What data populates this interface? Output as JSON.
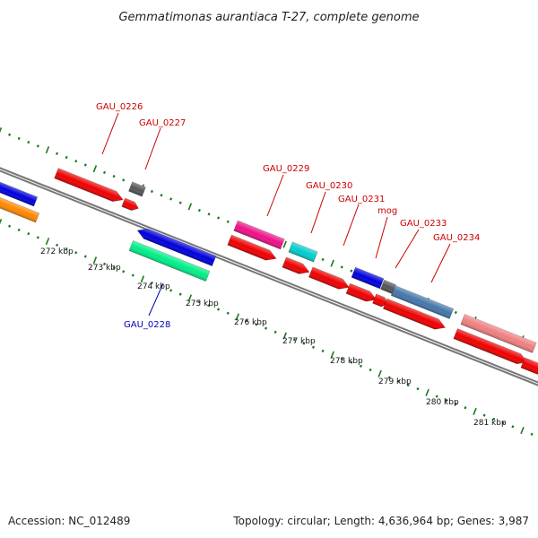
{
  "title": "Gemmatimonas aurantiaca T-27, complete genome",
  "footer": {
    "accession": "Accession: NC_012489",
    "summary": "Topology: circular; Length: 4,636,964 bp; Genes: 3,987"
  },
  "colors": {
    "backbone": "#777777",
    "ticks": "#1a7a1a",
    "forward_label": "#cc0000",
    "reverse_label": "#0000bb"
  },
  "scale_labels": [
    "272 kbp",
    "273 kbp",
    "274 kbp",
    "275 kbp",
    "276 kbp",
    "277 kbp",
    "278 kbp",
    "279 kbp",
    "280 kbp",
    "281 kbp"
  ],
  "gene_labels": [
    {
      "text": "GAU_0226",
      "strand": "forward"
    },
    {
      "text": "GAU_0227",
      "strand": "forward"
    },
    {
      "text": "GAU_0229",
      "strand": "forward"
    },
    {
      "text": "GAU_0230",
      "strand": "forward"
    },
    {
      "text": "GAU_0231",
      "strand": "forward"
    },
    {
      "text": "mog",
      "strand": "forward"
    },
    {
      "text": "GAU_0233",
      "strand": "forward"
    },
    {
      "text": "GAU_0234",
      "strand": "forward"
    },
    {
      "text": "GAU_0228",
      "strand": "reverse"
    }
  ],
  "features": [
    {
      "color": "#0000dd",
      "kind": "box"
    },
    {
      "color": "#ff8800",
      "kind": "box"
    },
    {
      "color": "#ee0000",
      "kind": "arrow"
    },
    {
      "color": "#ee0000",
      "kind": "arrow"
    },
    {
      "color": "#555555",
      "kind": "box"
    },
    {
      "color": "#0000dd",
      "kind": "arrow"
    },
    {
      "color": "#00ee88",
      "kind": "box"
    },
    {
      "color": "#ee1188",
      "kind": "box"
    },
    {
      "color": "#ee0000",
      "kind": "arrow"
    },
    {
      "color": "#00cccc",
      "kind": "box"
    },
    {
      "color": "#ee0000",
      "kind": "arrow"
    },
    {
      "color": "#ee0000",
      "kind": "arrow"
    },
    {
      "color": "#ee0000",
      "kind": "arrow"
    },
    {
      "color": "#0000dd",
      "kind": "box"
    },
    {
      "color": "#555555",
      "kind": "box"
    },
    {
      "color": "#ee0000",
      "kind": "arrow"
    },
    {
      "color": "#4477aa",
      "kind": "box"
    },
    {
      "color": "#ee0000",
      "kind": "arrow"
    },
    {
      "color": "#f08080",
      "kind": "box"
    },
    {
      "color": "#ee0000",
      "kind": "arrow"
    },
    {
      "color": "#ee0000",
      "kind": "arrow"
    }
  ]
}
